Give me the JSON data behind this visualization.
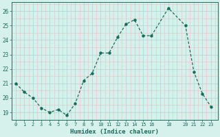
{
  "x": [
    0,
    1,
    2,
    3,
    4,
    5,
    6,
    7,
    8,
    9,
    10,
    11,
    12,
    13,
    14,
    15,
    16,
    18,
    20,
    21,
    22,
    23
  ],
  "y": [
    21.0,
    20.4,
    20.0,
    19.3,
    19.0,
    19.2,
    18.8,
    19.6,
    21.2,
    21.7,
    23.1,
    23.1,
    24.2,
    25.1,
    25.4,
    24.3,
    24.3,
    26.2,
    25.0,
    21.8,
    20.3,
    19.4
  ],
  "bg_color": "#d6f0eb",
  "plot_bg_color": "#d6f0eb",
  "line_color": "#1a6b5a",
  "marker_color": "#1a6b5a",
  "grid_major_color": "#b8d8d2",
  "grid_minor_color": "#e8c8c8",
  "xlabel": "Humidex (Indice chaleur)",
  "yticks": [
    19,
    20,
    21,
    22,
    23,
    24,
    25,
    26
  ],
  "xticks": [
    0,
    1,
    2,
    3,
    4,
    5,
    6,
    7,
    8,
    9,
    10,
    11,
    12,
    13,
    14,
    15,
    16,
    18,
    20,
    21,
    22,
    23
  ],
  "ylim": [
    18.5,
    26.6
  ],
  "xlim": [
    -0.5,
    23.8
  ]
}
